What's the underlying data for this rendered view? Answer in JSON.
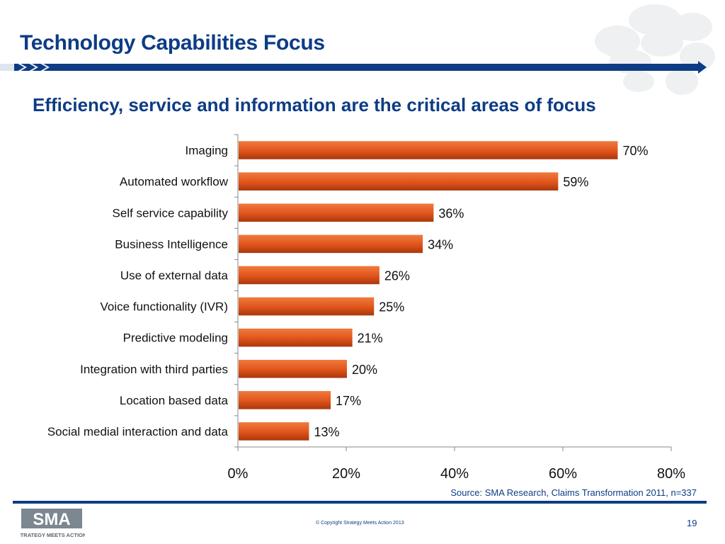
{
  "slide": {
    "title": "Technology Capabilities Focus",
    "subtitle": "Efficiency, service and information are the critical areas of focus",
    "source": "Source: SMA Research, Claims Transformation 2011, n=337",
    "copyright": "© Copyright Strategy Meets Action 2013",
    "page_number": "19",
    "logo_text": "SMA",
    "logo_tagline": "STRATEGY MEETS ACTION"
  },
  "colors": {
    "title": "#0d3c85",
    "bar": "#e0541b",
    "bar_dark": "#a8370c",
    "accent_bar": "#0d3c85"
  },
  "chart_data": {
    "type": "bar",
    "orientation": "horizontal",
    "categories": [
      "Imaging",
      "Automated workflow",
      "Self service capability",
      "Business Intelligence",
      "Use of external data",
      "Voice functionality (IVR)",
      "Predictive modeling",
      "Integration with third parties",
      "Location based data",
      "Social medial interaction and data"
    ],
    "values": [
      70,
      59,
      36,
      34,
      26,
      25,
      21,
      20,
      17,
      13
    ],
    "value_labels": [
      "70%",
      "59%",
      "36%",
      "34%",
      "26%",
      "25%",
      "21%",
      "20%",
      "17%",
      "13%"
    ],
    "xlim": [
      0,
      80
    ],
    "xticks": [
      0,
      20,
      40,
      60,
      80
    ],
    "xtick_labels": [
      "0%",
      "20%",
      "40%",
      "60%",
      "80%"
    ],
    "grid": false,
    "legend": "none"
  }
}
